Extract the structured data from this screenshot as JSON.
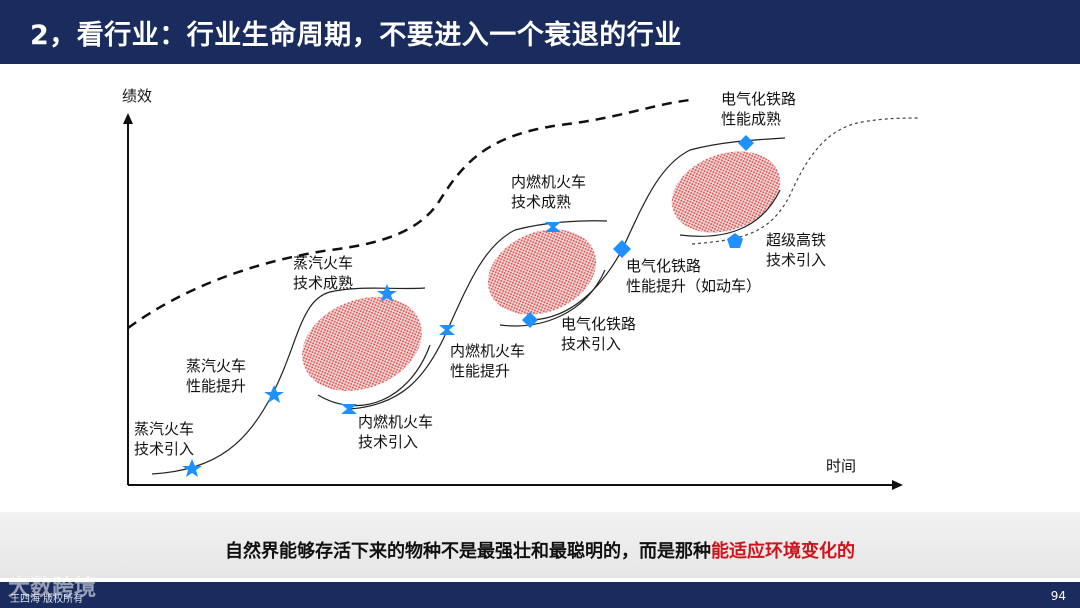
{
  "header": {
    "title": "2，看行业：行业生命周期，不要进入一个衰退的行业"
  },
  "diagram": {
    "y_axis_label": "绩效",
    "x_axis_label": "时间",
    "labels": {
      "steam_intro": [
        "蒸汽火车",
        "技术引入"
      ],
      "steam_improve": [
        "蒸汽火车",
        "性能提升"
      ],
      "steam_mature": [
        "蒸汽火车",
        "技术成熟"
      ],
      "ice_intro": [
        "内燃机火车",
        "技术引入"
      ],
      "ice_improve": [
        "内燃机火车",
        "性能提升"
      ],
      "ice_mature": [
        "内燃机火车",
        "技术成熟"
      ],
      "elec_intro": [
        "电气化铁路",
        "技术引入"
      ],
      "elec_improve": [
        "电气化铁路",
        "性能提升（如动车）"
      ],
      "elec_mature": [
        "电气化铁路",
        "性能成熟"
      ],
      "hsr_intro": [
        "超级高铁",
        "技术引入"
      ]
    },
    "colors": {
      "axis": "#111111",
      "curve": "#222222",
      "envelope": "#111111",
      "marker": "#1e90ff",
      "hatch": "#d9534f"
    }
  },
  "quote": {
    "text": "自然界能够存活下来的物种不是最强壮和最聪明的，而是那种",
    "highlight": "能适应环境变化的"
  },
  "footer": {
    "left_text": "王四海 版权所有",
    "watermark": "大数跨境",
    "page_number": "94"
  }
}
